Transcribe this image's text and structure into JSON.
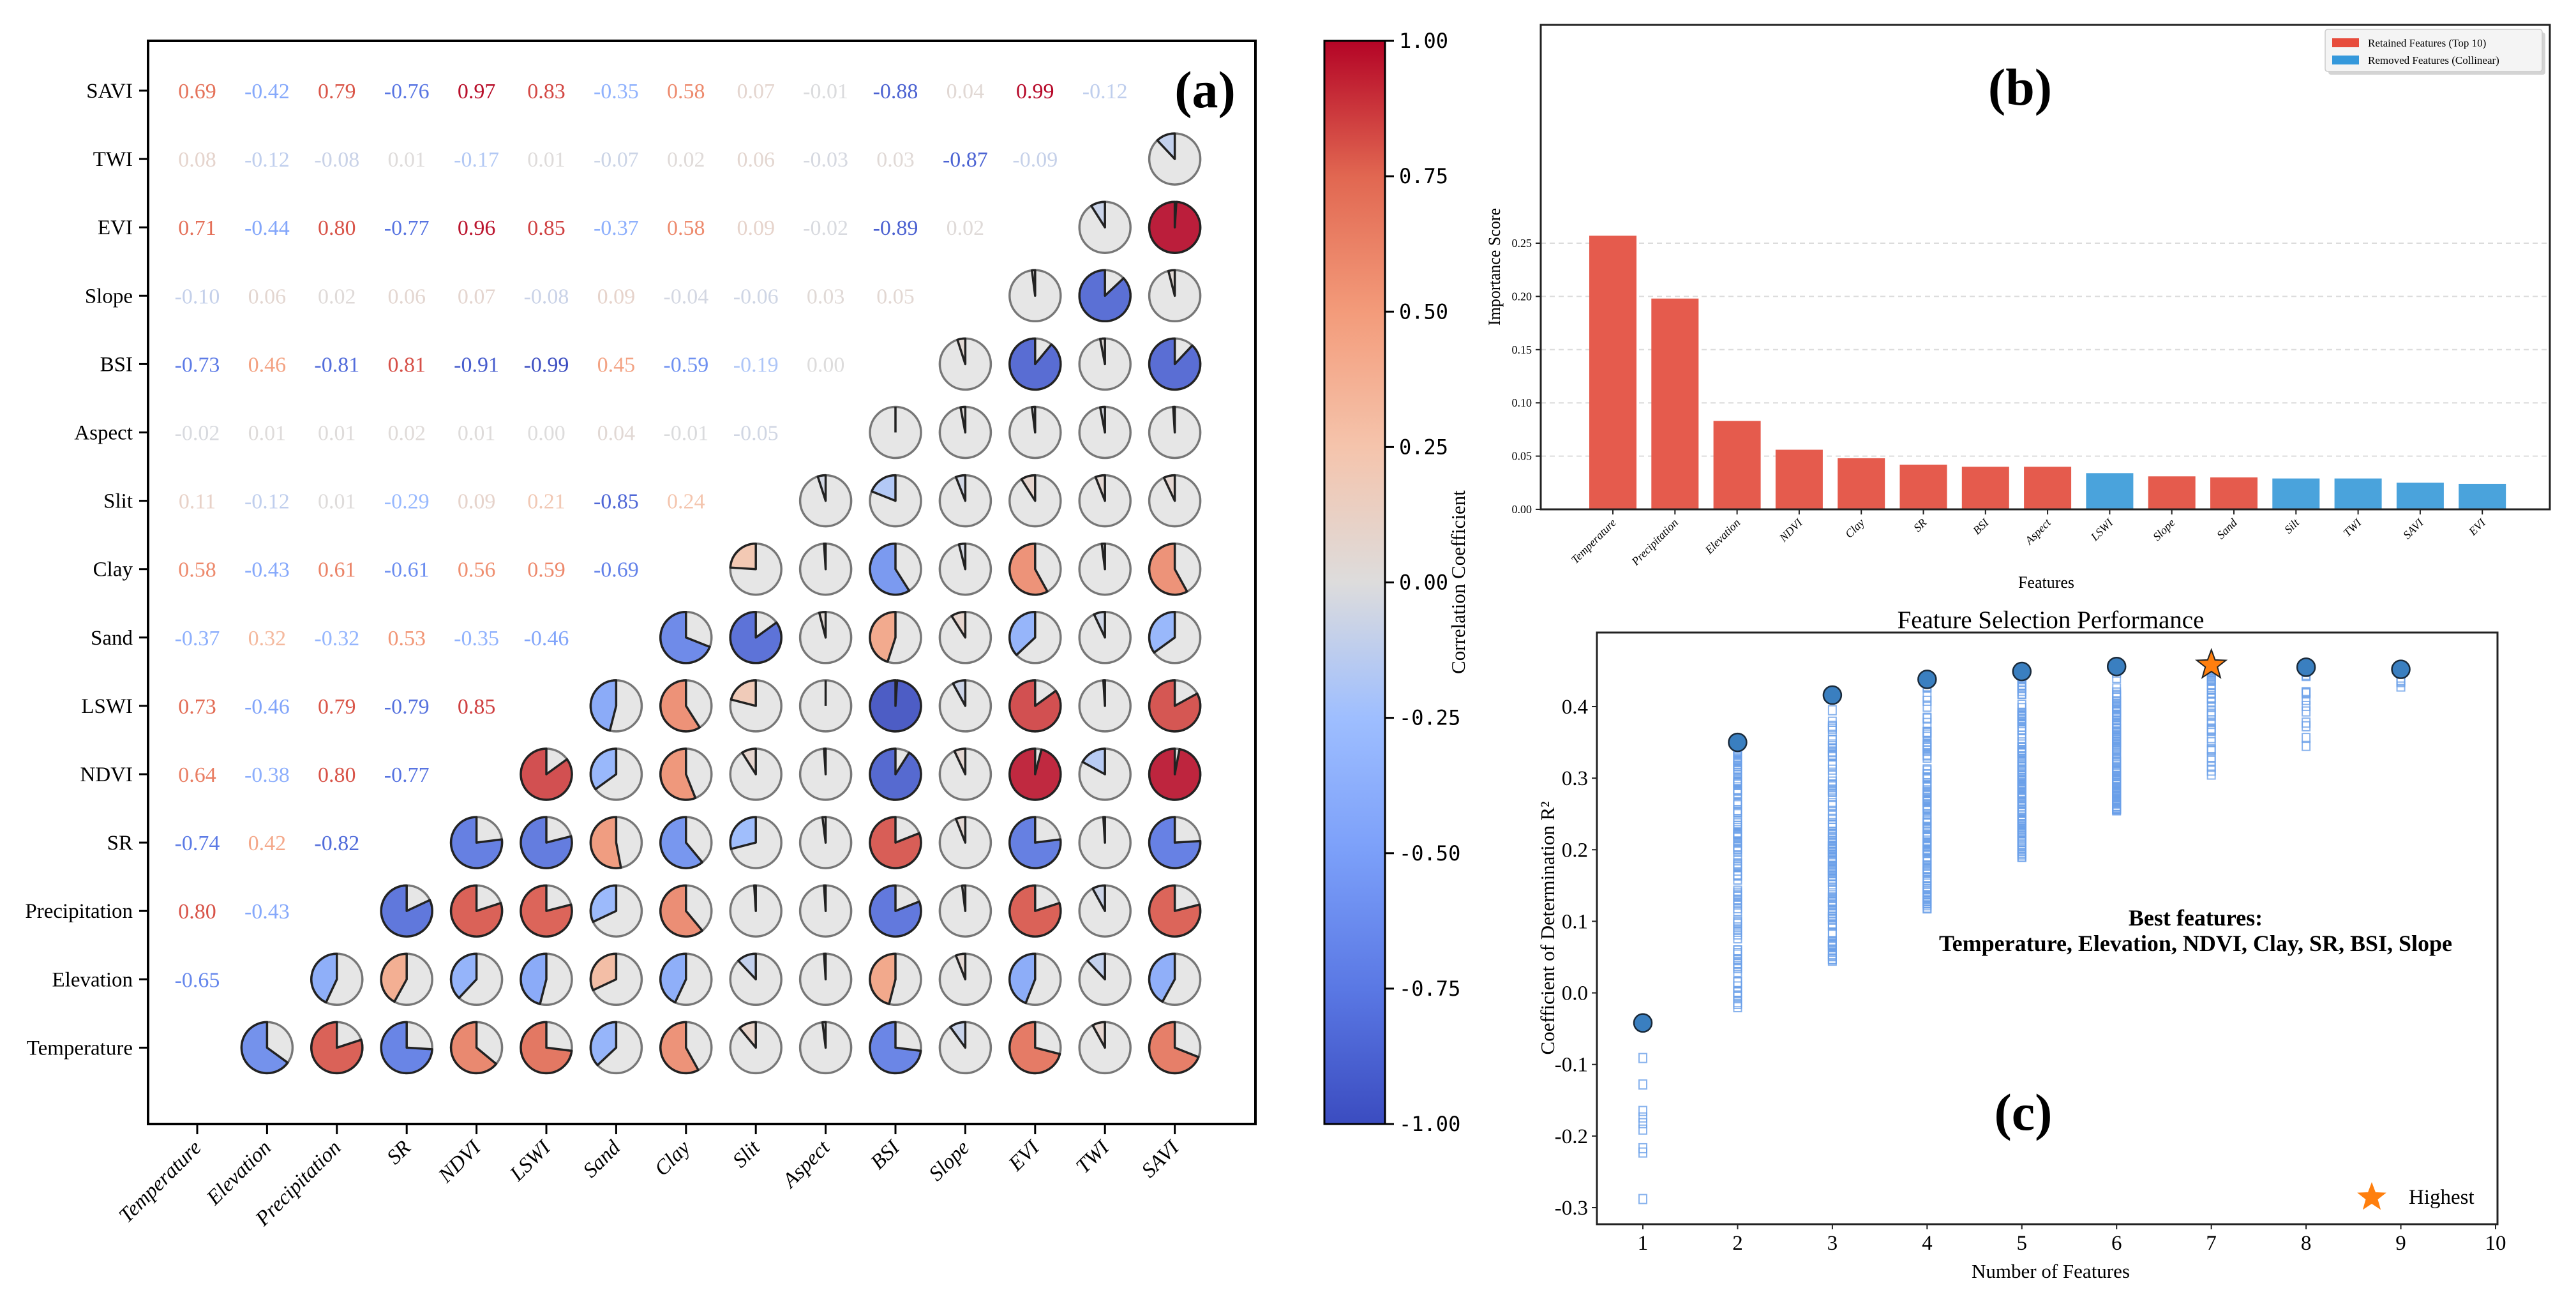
{
  "figure": {
    "panels": [
      "(a)",
      "(b)",
      "(c)"
    ]
  },
  "chart_data": [
    {
      "type": "heatmap",
      "panel_label": "(a)",
      "subtype": "correlation-matrix (lower: values, upper: pie glyphs)",
      "x_labels": [
        "Temperature",
        "Elevation",
        "Precipitation",
        "SR",
        "NDVI",
        "LSWI",
        "Sand",
        "Clay",
        "Slit",
        "Aspect",
        "BSI",
        "Slope",
        "EVI",
        "TWI",
        "SAVI"
      ],
      "y_labels_top_to_bottom": [
        "SAVI",
        "TWI",
        "EVI",
        "Slope",
        "BSI",
        "Aspect",
        "Slit",
        "Clay",
        "Sand",
        "LSWI",
        "NDVI",
        "SR",
        "Precipitation",
        "Elevation",
        "Temperature"
      ],
      "lower_triangle": {
        "SAVI": [
          0.69,
          -0.42,
          0.79,
          -0.76,
          0.97,
          0.83,
          -0.35,
          0.58,
          0.07,
          -0.01,
          -0.88,
          0.04,
          0.99,
          -0.12
        ],
        "TWI": [
          0.08,
          -0.12,
          -0.08,
          0.01,
          -0.17,
          0.01,
          -0.07,
          0.02,
          0.06,
          -0.03,
          0.03,
          -0.87,
          -0.09
        ],
        "EVI": [
          0.71,
          -0.44,
          0.8,
          -0.77,
          0.96,
          0.85,
          -0.37,
          0.58,
          0.09,
          -0.02,
          -0.89,
          0.02
        ],
        "Slope": [
          -0.1,
          0.06,
          0.02,
          0.06,
          0.07,
          -0.08,
          0.09,
          -0.04,
          -0.06,
          0.03,
          0.05
        ],
        "BSI": [
          -0.73,
          0.46,
          -0.81,
          0.81,
          -0.91,
          -0.99,
          0.45,
          -0.59,
          -0.19,
          -0.0
        ],
        "Aspect": [
          -0.02,
          0.01,
          0.01,
          0.02,
          0.01,
          -0.0,
          0.04,
          -0.01,
          -0.05
        ],
        "Slit": [
          0.11,
          -0.12,
          0.01,
          -0.29,
          0.09,
          0.21,
          -0.85,
          0.24
        ],
        "Clay": [
          0.58,
          -0.43,
          0.61,
          -0.61,
          0.56,
          0.59,
          -0.69
        ],
        "Sand": [
          -0.37,
          0.32,
          -0.32,
          0.53,
          -0.35,
          -0.46
        ],
        "LSWI": [
          0.73,
          -0.46,
          0.79,
          -0.79,
          0.85
        ],
        "NDVI": [
          0.64,
          -0.38,
          0.8,
          -0.77
        ],
        "SR": [
          -0.74,
          0.42,
          -0.82
        ],
        "Precipitation": [
          0.8,
          -0.43
        ],
        "Elevation": [
          -0.65
        ]
      },
      "colorbar": {
        "label": "Correlation Coefficient",
        "range": [
          -1.0,
          1.0
        ],
        "ticks": [
          "1.00",
          "0.75",
          "0.50",
          "0.25",
          "0.00",
          "-0.25",
          "-0.50",
          "-0.75",
          "-1.00"
        ],
        "colormap": "coolwarm"
      }
    },
    {
      "type": "bar",
      "panel_label": "(b)",
      "categories": [
        "Temperature",
        "Precipitation",
        "Elevation",
        "NDVI",
        "Clay",
        "SR",
        "BSI",
        "Aspect",
        "LSWI",
        "Slope",
        "Sand",
        "Silt",
        "TWI",
        "SAVI",
        "EVI"
      ],
      "values": [
        0.257,
        0.198,
        0.083,
        0.056,
        0.048,
        0.042,
        0.04,
        0.04,
        0.034,
        0.031,
        0.03,
        0.029,
        0.029,
        0.025,
        0.024
      ],
      "groups": [
        "retained",
        "retained",
        "retained",
        "retained",
        "retained",
        "retained",
        "retained",
        "retained",
        "removed",
        "retained",
        "retained",
        "removed",
        "removed",
        "removed",
        "removed"
      ],
      "legend": [
        {
          "key": "retained",
          "label": "Retained Features (Top 10)",
          "color": "#e74c3c"
        },
        {
          "key": "removed",
          "label": "Removed Features (Collinear)",
          "color": "#3498db"
        }
      ],
      "legend_position": "top-right",
      "xlabel": "Features",
      "ylabel": "Importance Score",
      "ylim": [
        0,
        0.27
      ],
      "yticks": [
        "0.00",
        "0.05",
        "0.10",
        "0.15",
        "0.20",
        "0.25"
      ],
      "grid": "horizontal dashed"
    },
    {
      "type": "scatter",
      "panel_label": "(c)",
      "title": "Feature Selection Performance",
      "xlabel": "Number of Features",
      "ylabel": "Coefficient of Determination R²",
      "xlim": [
        0.6,
        10
      ],
      "ylim": [
        -0.33,
        0.48
      ],
      "xticks": [
        "1",
        "2",
        "3",
        "4",
        "5",
        "6",
        "7",
        "8",
        "9",
        "10"
      ],
      "yticks": [
        "-0.3",
        "-0.2",
        "-0.1",
        "0.0",
        "0.1",
        "0.2",
        "0.3",
        "0.4"
      ],
      "best_per_n": [
        {
          "n": 1,
          "r2": -0.042
        },
        {
          "n": 2,
          "r2": 0.35
        },
        {
          "n": 3,
          "r2": 0.416
        },
        {
          "n": 4,
          "r2": 0.438
        },
        {
          "n": 5,
          "r2": 0.449
        },
        {
          "n": 6,
          "r2": 0.456
        },
        {
          "n": 7,
          "r2": 0.458,
          "highest": true
        },
        {
          "n": 8,
          "r2": 0.455
        },
        {
          "n": 9,
          "r2": 0.452
        }
      ],
      "all_combinations_range": [
        {
          "n": 1,
          "min": -0.288,
          "max": -0.042,
          "samples": [
            -0.091,
            -0.128,
            -0.165,
            -0.174,
            -0.182,
            -0.191,
            -0.217,
            -0.223,
            -0.288
          ]
        },
        {
          "n": 2,
          "min": -0.02,
          "max": 0.35
        },
        {
          "n": 3,
          "min": 0.045,
          "max": 0.416
        },
        {
          "n": 4,
          "min": 0.118,
          "max": 0.438
        },
        {
          "n": 5,
          "min": 0.19,
          "max": 0.449
        },
        {
          "n": 6,
          "min": 0.255,
          "max": 0.456
        },
        {
          "n": 7,
          "min": 0.305,
          "max": 0.458
        },
        {
          "n": 8,
          "min": 0.345,
          "max": 0.455
        },
        {
          "n": 9,
          "min": 0.428,
          "max": 0.452
        }
      ],
      "annotation_title": "Best features:",
      "annotation_features": "Temperature, Elevation, NDVI, Clay, SR, BSI, Slope",
      "legend": [
        {
          "label": "Highest",
          "marker": "star",
          "color": "#ff7f0e"
        }
      ],
      "legend_position": "bottom-right"
    }
  ]
}
